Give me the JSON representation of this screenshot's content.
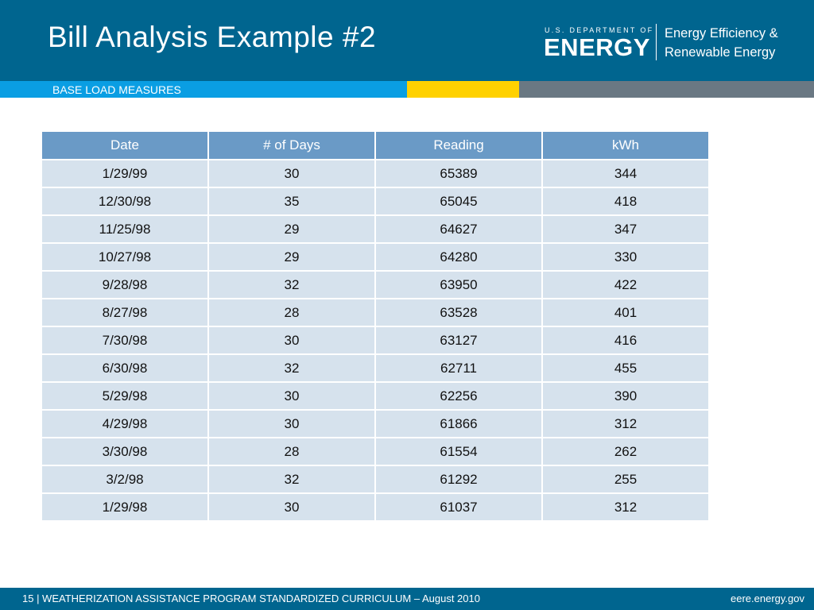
{
  "title": "Bill Analysis Example #2",
  "section": "BASE LOAD MEASURES",
  "logo": {
    "dept": "U.S. DEPARTMENT OF",
    "name": "ENERGY",
    "office_line1": "Energy Efficiency &",
    "office_line2": "Renewable Energy"
  },
  "table": {
    "headers": [
      "Date",
      "# of Days",
      "Reading",
      "kWh"
    ],
    "rows": [
      [
        "1/29/99",
        "30",
        "65389",
        "344"
      ],
      [
        "12/30/98",
        "35",
        "65045",
        "418"
      ],
      [
        "11/25/98",
        "29",
        "64627",
        "347"
      ],
      [
        "10/27/98",
        "29",
        "64280",
        "330"
      ],
      [
        "9/28/98",
        "32",
        "63950",
        "422"
      ],
      [
        "8/27/98",
        "28",
        "63528",
        "401"
      ],
      [
        "7/30/98",
        "30",
        "63127",
        "416"
      ],
      [
        "6/30/98",
        "32",
        "62711",
        "455"
      ],
      [
        "5/29/98",
        "30",
        "62256",
        "390"
      ],
      [
        "4/29/98",
        "30",
        "61866",
        "312"
      ],
      [
        "3/30/98",
        "28",
        "61554",
        "262"
      ],
      [
        "3/2/98",
        "32",
        "61292",
        "255"
      ],
      [
        "1/29/98",
        "30",
        "61037",
        "312"
      ]
    ]
  },
  "footer": {
    "left": "15 | WEATHERIZATION ASSISTANCE PROGRAM STANDARDIZED CURRICULUM – August 2010",
    "right": "eere.energy.gov"
  },
  "colors": {
    "header_bg": "#00658f",
    "band_blue": "#0a9ee3",
    "band_yellow": "#ffd100",
    "band_gray": "#6a7883",
    "table_header": "#6a9ac6",
    "table_cell": "#d6e2ed"
  }
}
